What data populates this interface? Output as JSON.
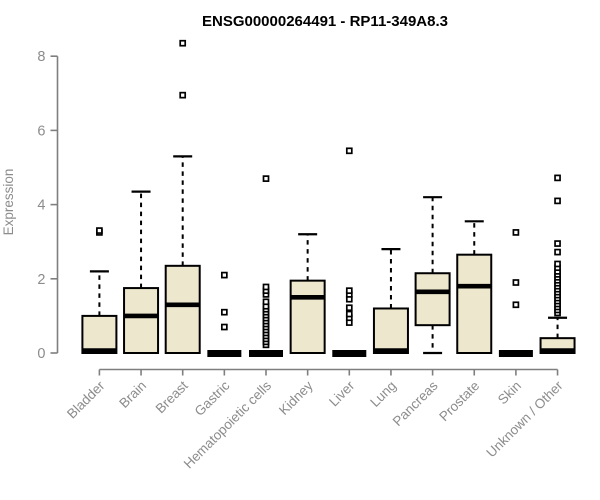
{
  "chart_data": {
    "type": "boxplot",
    "title": "ENSG00000264491 - RP11-349A8.3",
    "ylabel": "Expression",
    "ylim": [
      0,
      8.5
    ],
    "yticks": [
      0,
      2,
      4,
      6,
      8
    ],
    "grid": false,
    "legend": null,
    "categories": [
      "Bladder",
      "Brain",
      "Breast",
      "Gastric",
      "Hematopoietic cells",
      "Kidney",
      "Liver",
      "Lung",
      "Pancreas",
      "Prostate",
      "Skin",
      "Unknown / Other"
    ],
    "boxes": [
      {
        "category": "Bladder",
        "q1": 0,
        "median": 0.05,
        "q3": 1.0,
        "whisker_low": 0,
        "whisker_high": 2.2,
        "outliers": [
          3.25,
          3.3
        ]
      },
      {
        "category": "Brain",
        "q1": 0,
        "median": 1.0,
        "q3": 1.75,
        "whisker_low": 0,
        "whisker_high": 4.35,
        "outliers": []
      },
      {
        "category": "Breast",
        "q1": 0,
        "median": 1.3,
        "q3": 2.35,
        "whisker_low": 0,
        "whisker_high": 5.3,
        "outliers": [
          6.95,
          8.35
        ]
      },
      {
        "category": "Gastric",
        "q1": 0,
        "median": 0,
        "q3": 0,
        "whisker_low": 0,
        "whisker_high": 0,
        "outliers": [
          0.7,
          1.1,
          2.1
        ]
      },
      {
        "category": "Hematopoietic cells",
        "q1": 0,
        "median": 0,
        "q3": 0,
        "whisker_low": 0,
        "whisker_high": 0,
        "outliers": [
          0.22,
          0.3,
          0.38,
          0.46,
          0.54,
          0.62,
          0.7,
          0.78,
          0.86,
          0.94,
          1.02,
          1.1,
          1.18,
          1.26,
          1.38,
          1.58,
          1.68,
          1.78,
          4.7
        ]
      },
      {
        "category": "Kidney",
        "q1": 0,
        "median": 1.5,
        "q3": 1.95,
        "whisker_low": 0,
        "whisker_high": 3.2,
        "outliers": []
      },
      {
        "category": "Liver",
        "q1": 0,
        "median": 0,
        "q3": 0,
        "whisker_low": 0,
        "whisker_high": 0,
        "outliers": [
          0.82,
          0.95,
          1.05,
          1.22,
          1.45,
          1.58,
          1.68,
          5.45
        ]
      },
      {
        "category": "Lung",
        "q1": 0,
        "median": 0.05,
        "q3": 1.2,
        "whisker_low": 0,
        "whisker_high": 2.8,
        "outliers": []
      },
      {
        "category": "Pancreas",
        "q1": 0.75,
        "median": 1.65,
        "q3": 2.15,
        "whisker_low": 0,
        "whisker_high": 4.2,
        "outliers": []
      },
      {
        "category": "Prostate",
        "q1": 0,
        "median": 1.8,
        "q3": 2.65,
        "whisker_low": 0,
        "whisker_high": 3.55,
        "outliers": []
      },
      {
        "category": "Skin",
        "q1": 0,
        "median": 0,
        "q3": 0,
        "whisker_low": 0,
        "whisker_high": 0,
        "outliers": [
          1.3,
          1.9,
          3.25
        ]
      },
      {
        "category": "Unknown / Other",
        "q1": 0,
        "median": 0.05,
        "q3": 0.4,
        "whisker_low": 0,
        "whisker_high": 0.95,
        "outliers": [
          1.08,
          1.16,
          1.24,
          1.32,
          1.4,
          1.48,
          1.56,
          1.64,
          1.72,
          1.8,
          1.88,
          1.96,
          2.04,
          2.12,
          2.2,
          2.3,
          2.4,
          2.72,
          2.95,
          4.1,
          4.72
        ]
      }
    ],
    "colors": {
      "box_fill": "#EDE7CE",
      "box_border": "#000000",
      "median": "#000000",
      "whisker": "#000000",
      "outlier_fill": "#ffffff",
      "outlier_border": "#000000",
      "axis": "#7f7f7f",
      "tick_text": "#8c8c8c",
      "title_text": "#000000",
      "background": "#ffffff"
    }
  }
}
